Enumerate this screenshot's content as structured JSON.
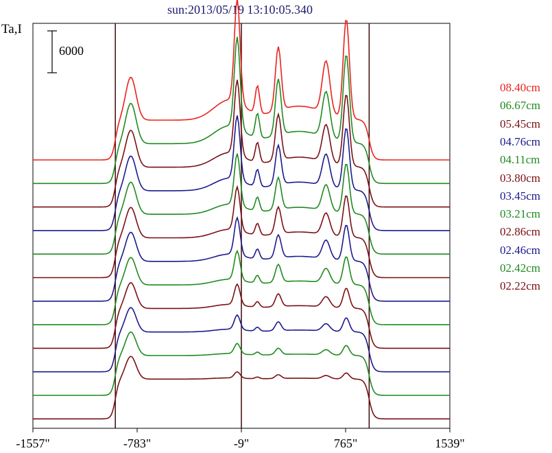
{
  "chart_data": {
    "type": "line",
    "title": "sun:2013/05/19 13:10:05.340",
    "ylabel": "Ta,I",
    "scale_bar_label": "6000",
    "x_ticks": [
      "-1557\"",
      "-783\"",
      "-9\"",
      "765\"",
      "1539\""
    ],
    "xlim": [
      -1557,
      1539
    ],
    "vertical_lines_x": [
      -945,
      -9,
      940
    ],
    "series": [
      {
        "name": "08.40cm",
        "color": "#e8221c",
        "offset": 0,
        "spikes": 1.0
      },
      {
        "name": "06.67cm",
        "color": "#1f8a1f",
        "offset": 1,
        "spikes": 0.88
      },
      {
        "name": "05.45cm",
        "color": "#7a0f14",
        "offset": 2,
        "spikes": 0.72
      },
      {
        "name": "04.76cm",
        "color": "#1a1a8c",
        "offset": 3,
        "spikes": 0.62
      },
      {
        "name": "04.11cm",
        "color": "#1f8a1f",
        "offset": 4,
        "spikes": 0.5
      },
      {
        "name": "03.80cm",
        "color": "#7a0f14",
        "offset": 5,
        "spikes": 0.42
      },
      {
        "name": "03.45cm",
        "color": "#1a1a8c",
        "offset": 6,
        "spikes": 0.36
      },
      {
        "name": "03.21cm",
        "color": "#1f8a1f",
        "offset": 7,
        "spikes": 0.28
      },
      {
        "name": "02.86cm",
        "color": "#7a0f14",
        "offset": 8,
        "spikes": 0.2
      },
      {
        "name": "02.46cm",
        "color": "#1a1a8c",
        "offset": 9,
        "spikes": 0.14
      },
      {
        "name": "02.42cm",
        "color": "#1f8a1f",
        "offset": 10,
        "spikes": 0.1
      },
      {
        "name": "02.22cm",
        "color": "#7a0f14",
        "offset": 11,
        "spikes": 0.06
      }
    ]
  }
}
